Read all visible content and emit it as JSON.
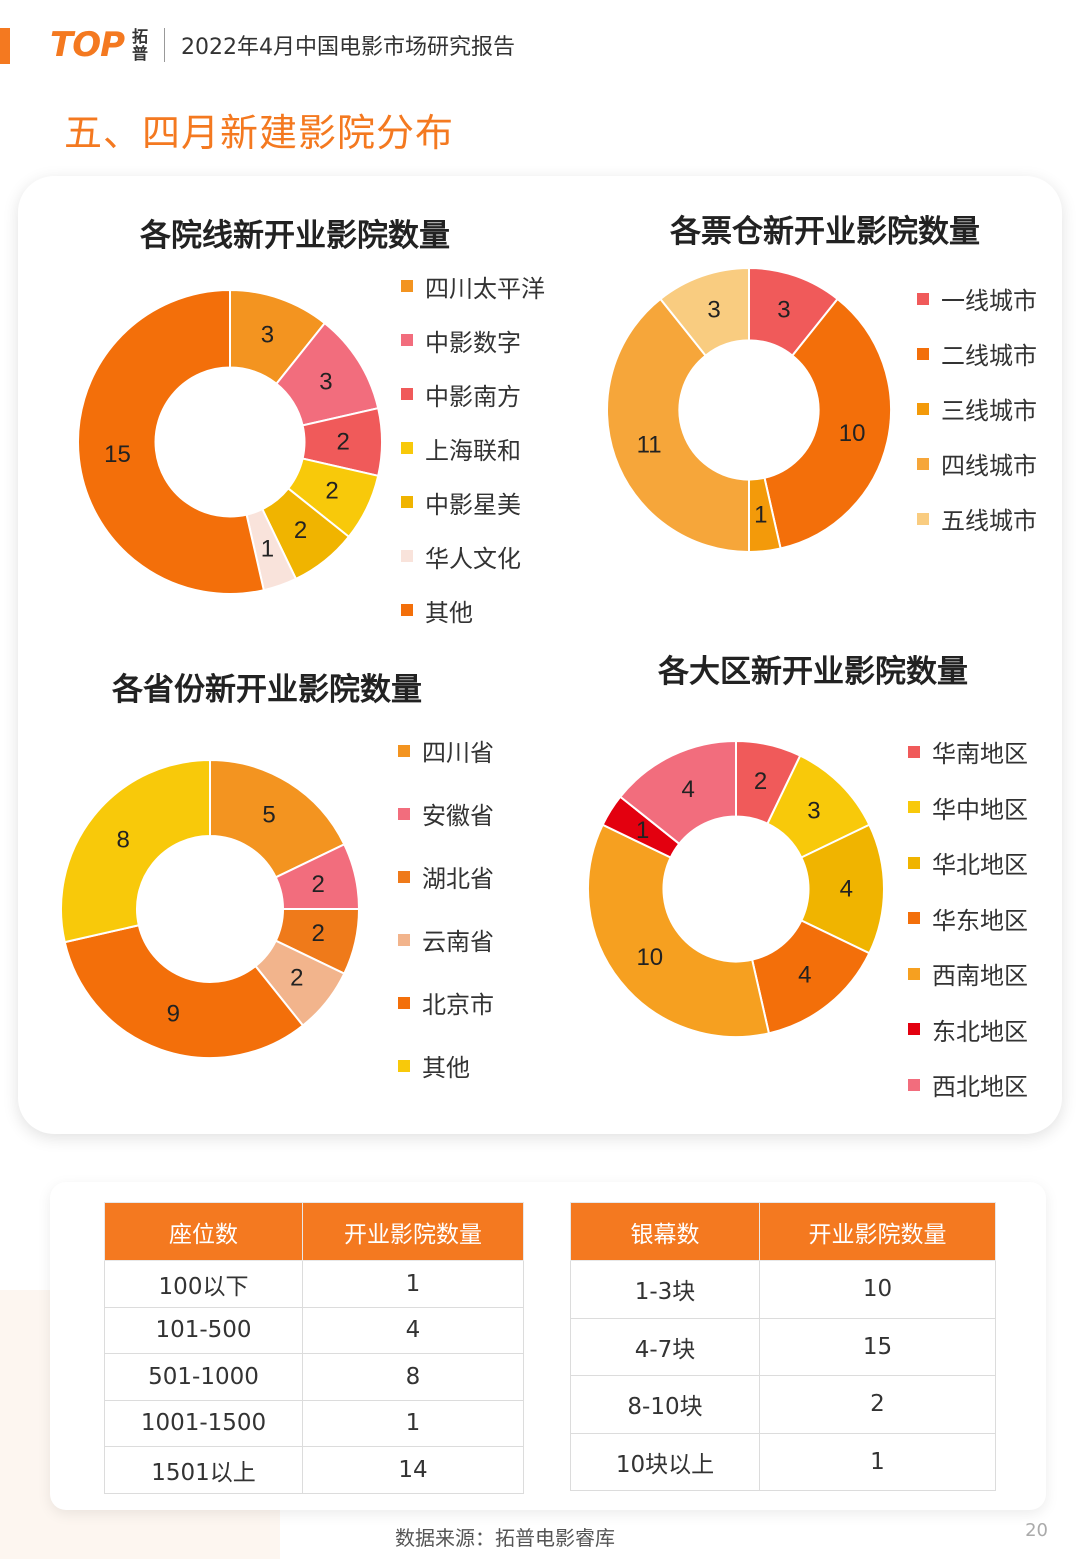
{
  "header": {
    "logo_text": "TOP",
    "logo_sub": "拓普",
    "report_title": "2022年4月中国电影市场研究报告"
  },
  "section_title": "五、四月新建影院分布",
  "chart_data": [
    {
      "id": "chart1",
      "type": "pie",
      "donut": true,
      "title": "各院线新开业影院数量",
      "categories": [
        "四川太平洋",
        "中影数字",
        "中影南方",
        "上海联和",
        "中影星美",
        "华人文化",
        "其他"
      ],
      "values": [
        3,
        3,
        2,
        2,
        2,
        1,
        15
      ],
      "colors": [
        "#f39420",
        "#f26d7d",
        "#f05a5a",
        "#f8c90a",
        "#f0b400",
        "#f9e3db",
        "#f36f0a"
      ],
      "label_colors": [
        "#222",
        "#222",
        "#222",
        "#222",
        "#222",
        "#222",
        "#222"
      ]
    },
    {
      "id": "chart2",
      "type": "pie",
      "donut": true,
      "title": "各票仓新开业影院数量",
      "categories": [
        "一线城市",
        "二线城市",
        "三线城市",
        "四线城市",
        "五线城市"
      ],
      "values": [
        3,
        10,
        1,
        11,
        3
      ],
      "colors": [
        "#f05a5a",
        "#f36f0a",
        "#f39a0a",
        "#f6a63a",
        "#f9cc80"
      ],
      "label_colors": [
        "#222",
        "#222",
        "#222",
        "#222",
        "#222"
      ]
    },
    {
      "id": "chart3",
      "type": "pie",
      "donut": true,
      "title": "各省份新开业影院数量",
      "categories": [
        "四川省",
        "安徽省",
        "湖北省",
        "云南省",
        "北京市",
        "其他"
      ],
      "values": [
        5,
        2,
        2,
        2,
        9,
        8
      ],
      "colors": [
        "#f39420",
        "#f26d7d",
        "#ef7a1a",
        "#f2b48c",
        "#f36f0a",
        "#f8c90a"
      ],
      "label_colors": [
        "#222",
        "#222",
        "#222",
        "#222",
        "#222",
        "#222"
      ]
    },
    {
      "id": "chart4",
      "type": "pie",
      "donut": true,
      "title": "各大区新开业影院数量",
      "categories": [
        "华南地区",
        "华中地区",
        "华北地区",
        "华东地区",
        "西南地区",
        "东北地区",
        "西北地区"
      ],
      "values": [
        2,
        3,
        4,
        4,
        10,
        1,
        4
      ],
      "colors": [
        "#f05a5a",
        "#f8c90a",
        "#f0b400",
        "#f36f0a",
        "#f6a020",
        "#e3000f",
        "#f26d7d"
      ],
      "label_colors": [
        "#222",
        "#222",
        "#222",
        "#222",
        "#222",
        "#222",
        "#222"
      ]
    }
  ],
  "tables": {
    "seats": {
      "headers": [
        "座位数",
        "开业影院数量"
      ],
      "rows": [
        [
          "100以下",
          "1"
        ],
        [
          "101-500",
          "4"
        ],
        [
          "501-1000",
          "8"
        ],
        [
          "1001-1500",
          "1"
        ],
        [
          "1501以上",
          "14"
        ]
      ]
    },
    "screens": {
      "headers": [
        "银幕数",
        "开业影院数量"
      ],
      "rows": [
        [
          "1-3块",
          "10"
        ],
        [
          "4-7块",
          "15"
        ],
        [
          "8-10块",
          "2"
        ],
        [
          "10块以上",
          "1"
        ]
      ]
    }
  },
  "footer": {
    "source": "数据来源：拓普电影睿库",
    "page_number": "20"
  }
}
